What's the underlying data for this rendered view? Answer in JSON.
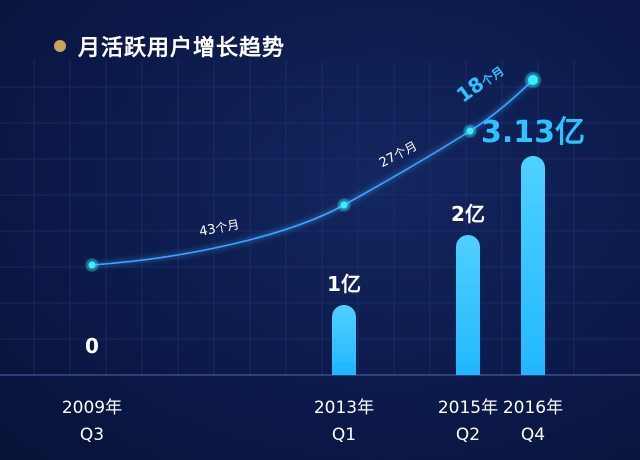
{
  "chart_data": {
    "type": "bar",
    "title": "月活跃用户增长趋势",
    "categories": [
      {
        "year": "2009年",
        "quarter": "Q3"
      },
      {
        "year": "2013年",
        "quarter": "Q1"
      },
      {
        "year": "2015年",
        "quarter": "Q2"
      },
      {
        "year": "2016年",
        "quarter": "Q4"
      }
    ],
    "x_positions_quarter_index": [
      2009.5,
      2013.0,
      2015.25,
      2016.75
    ],
    "values": [
      0,
      1,
      2,
      3.13
    ],
    "value_labels": [
      "0",
      "1亿",
      "2亿",
      "3.13亿"
    ],
    "unit": "亿",
    "ylim": [
      0,
      3.5
    ],
    "interval_labels": [
      {
        "value": "43",
        "unit": "个月"
      },
      {
        "value": "27",
        "unit": "个月"
      },
      {
        "value": "18",
        "unit": "个月"
      }
    ],
    "colors": {
      "title_dot": "#c8a455",
      "bar": "#22b8ff",
      "bar_top": "#4fd0ff",
      "accent_label": "#2bc4ff",
      "curve": "#3aa6ff",
      "node": "#34f0ff",
      "grid": "#23357a",
      "text": "#ffffff",
      "axis_label": "#ffffff"
    }
  }
}
